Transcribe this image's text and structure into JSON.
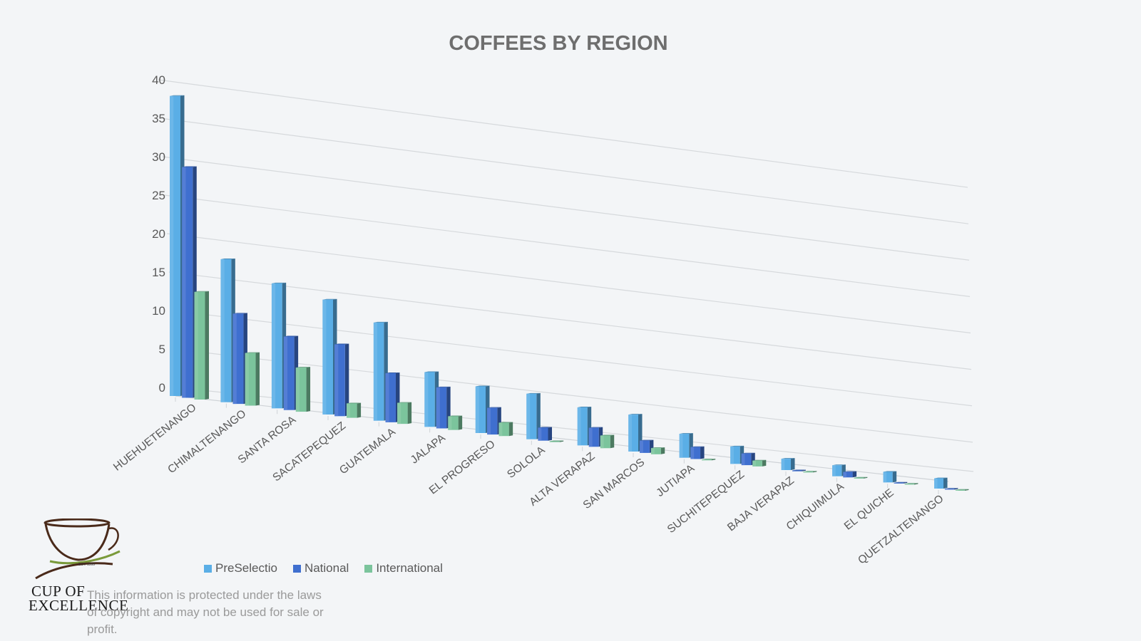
{
  "chart_data": {
    "type": "bar",
    "subtype": "3d-clustered-column",
    "title": "COFFEES BY REGION",
    "xlabel": "",
    "ylabel": "",
    "ylim": [
      0,
      40
    ],
    "y_ticks": [
      "0",
      "5",
      "10",
      "15",
      "20",
      "25",
      "30",
      "35",
      "40"
    ],
    "grid": true,
    "legend_position": "bottom-left",
    "categories": [
      "HUEHUETENANGO",
      "CHIMALTENANGO",
      "SANTA ROSA",
      "SACATEPEQUEZ",
      "GUATEMALA",
      "JALAPA",
      "EL PROGRESO",
      "SOLOLA",
      "ALTA VERAPAZ",
      "SAN MARCOS",
      "JUTIAPA",
      "SUCHITEPEQUEZ",
      "BAJA VERAPAZ",
      "CHIQUIMULA",
      "EL QUICHE",
      "QUETZALTENANGO"
    ],
    "series": [
      {
        "name": "PreSelectio",
        "color": "#5aaee6",
        "values": [
          39,
          19,
          17,
          16,
          14,
          8,
          7,
          7,
          6,
          6,
          4,
          3,
          2,
          2,
          2,
          2
        ]
      },
      {
        "name": "National",
        "color": "#3f6fcf",
        "values": [
          30,
          12,
          10,
          10,
          7,
          6,
          4,
          2,
          3,
          2,
          2,
          2,
          0,
          1,
          0,
          0
        ]
      },
      {
        "name": "International",
        "color": "#7bc49c",
        "values": [
          14,
          7,
          6,
          2,
          3,
          2,
          2,
          0,
          2,
          1,
          0,
          1,
          0,
          0,
          0,
          0
        ]
      }
    ]
  },
  "legend": {
    "items": [
      {
        "label": "PreSelectio",
        "color": "#5aaee6"
      },
      {
        "label": "National",
        "color": "#3f6fcf"
      },
      {
        "label": "International",
        "color": "#7bc49c"
      }
    ]
  },
  "logo": {
    "text_line1": "CUP OF",
    "text_line2": "EXCELLENCE",
    "est": "EST. 1999"
  },
  "copyright": "This information is protected under the laws of copyright and may not be used for sale or profit."
}
